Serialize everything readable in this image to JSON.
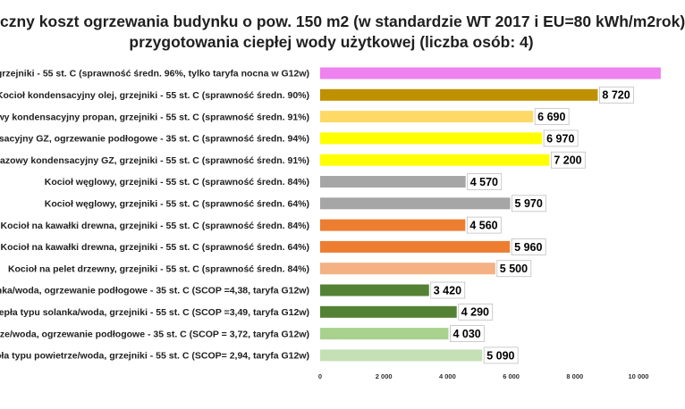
{
  "chart_data": {
    "type": "bar",
    "orientation": "horizontal",
    "title_line1": "czny koszt ogrzewania budynku  o pow. 150 m2 (w standardzie WT 2017 i EU=80 kWh/m2rok)",
    "title_line2": "przygotowania ciepłej wody użytkowej (liczba osób: 4)",
    "categories": [
      "grzejniki - 55 st. C  (sprawność średn. 96%, tylko taryfa nocna w G12w)",
      "Kocioł  kondensacyjny olej,  grzejniki - 55 st. C (sprawność średn. 90%)",
      "owy kondensacyjny propan, grzejniki - 55 st. C (sprawność średn. 91%)",
      "nsacyjny GZ, ogrzewanie podłogowe - 35 st. C (sprawność średn. 94%)",
      "gazowy kondensacyjny GZ, grzejniki - 55 st. C (sprawność średn. 91%)",
      "Kocioł węglowy,  grzejniki - 55 st. C (sprawność średn. 84%)",
      "Kocioł węglowy,  grzejniki - 55 st. C (sprawność średn. 64%)",
      "Kocioł na kawałki drewna, grzejniki - 55 st. C (sprawność średn. 84%)",
      "Kocioł na kawałki drewna, grzejniki - 55 st. C (sprawność średn. 64%)",
      "Kocioł na pelet drzewny, grzejniki - 55 st. C (sprawność średn. 84%)",
      "lanka/woda, ogrzewanie podłogowe - 35 st. C (SCOP =4,38, taryfa G12w)",
      "epła typu solanka/woda, grzejniki - 55 st. C (SCOP =3,49, taryfa G12w)",
      "trze/woda, ogrzewanie podłogowe - 35 st. C (SCOP = 3,72, taryfa G12w)",
      "pła typu powietrze/woda, grzejniki - 55 st. C (SCOP= 2,94, taryfa G12w)"
    ],
    "values": [
      10700,
      8720,
      6690,
      6970,
      7200,
      4570,
      5970,
      4560,
      5960,
      5500,
      3420,
      4290,
      4030,
      5090
    ],
    "data_labels": [
      "",
      "8 720",
      "6 690",
      "6 970",
      "7 200",
      "4 570",
      "5 970",
      "4 560",
      "5 960",
      "5 500",
      "3 420",
      "4 290",
      "4 030",
      "5 090"
    ],
    "colors": [
      "#ee82ee",
      "#bf9000",
      "#ffd966",
      "#ffff00",
      "#ffff00",
      "#a6a6a6",
      "#a6a6a6",
      "#ed7d31",
      "#ed7d31",
      "#f4b183",
      "#548235",
      "#548235",
      "#a9d18e",
      "#c5e0b4"
    ],
    "x_ticks": [
      "0",
      "2 000",
      "4 000",
      "6 000",
      "8 000",
      "10 000"
    ],
    "xlim": [
      0,
      10700
    ],
    "grid": false,
    "legend": "none"
  }
}
